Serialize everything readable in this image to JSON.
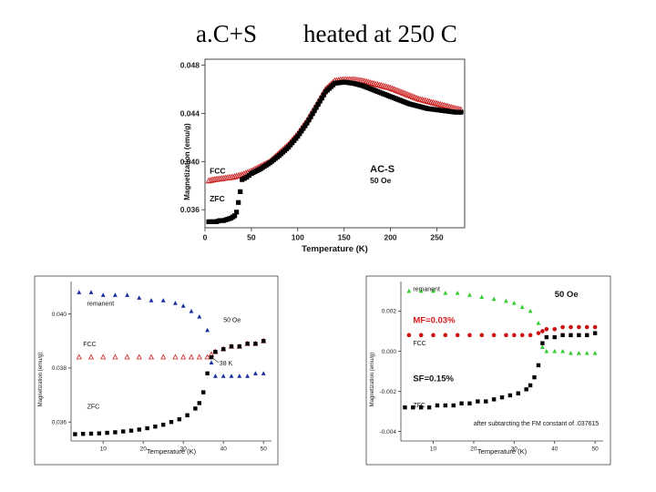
{
  "slide": {
    "title_left": "a.C+S",
    "title_right": "heated at 250 C"
  },
  "chart_data": [
    {
      "type": "scatter",
      "id": "top",
      "title": "",
      "xlabel": "Temperature (K)",
      "ylabel": "Magnetization (emu/g)",
      "xlim": [
        0,
        280
      ],
      "ylim": [
        0.0345,
        0.0485
      ],
      "xticks": [
        0,
        50,
        100,
        150,
        200,
        250
      ],
      "yticks": [
        0.036,
        0.04,
        0.044,
        0.048
      ],
      "ytick_labels": [
        "0.036",
        "0.040",
        "0.044",
        "0.048"
      ],
      "annotations": [
        {
          "text": "AC-S",
          "x": 178,
          "y": 0.0391
        },
        {
          "text": "50 Oe",
          "x": 178,
          "y": 0.0382
        },
        {
          "text": "FCC",
          "x": 5,
          "y": 0.039
        },
        {
          "text": "ZFC",
          "x": 5,
          "y": 0.0367
        }
      ],
      "series": [
        {
          "name": "FCC",
          "marker": "open-triangle",
          "color": "#cc2222",
          "x": [
            4,
            10,
            20,
            30,
            40,
            50,
            60,
            70,
            80,
            90,
            100,
            110,
            120,
            130,
            140,
            150,
            160,
            170,
            180,
            190,
            200,
            210,
            220,
            230,
            240,
            250,
            260,
            270,
            276
          ],
          "y": [
            0.0384,
            0.0385,
            0.0386,
            0.0387,
            0.0389,
            0.0392,
            0.0396,
            0.04,
            0.0407,
            0.0414,
            0.0423,
            0.0434,
            0.0447,
            0.046,
            0.0467,
            0.0468,
            0.0468,
            0.0467,
            0.0465,
            0.0463,
            0.0461,
            0.0458,
            0.0455,
            0.0452,
            0.045,
            0.0448,
            0.0446,
            0.0444,
            0.0443
          ]
        },
        {
          "name": "ZFC",
          "marker": "filled-square",
          "color": "#000000",
          "x": [
            4,
            8,
            12,
            16,
            20,
            24,
            28,
            30,
            32,
            34,
            36,
            38,
            40,
            45,
            50,
            60,
            70,
            80,
            90,
            100,
            110,
            120,
            130,
            140,
            150,
            160,
            170,
            180,
            190,
            200,
            210,
            220,
            230,
            240,
            250,
            260,
            270,
            276
          ],
          "y": [
            0.035,
            0.035,
            0.035,
            0.0351,
            0.0351,
            0.0352,
            0.0353,
            0.0354,
            0.0355,
            0.0358,
            0.0366,
            0.0375,
            0.0385,
            0.0387,
            0.039,
            0.0394,
            0.0399,
            0.0405,
            0.0412,
            0.0421,
            0.0432,
            0.0445,
            0.0458,
            0.0465,
            0.0466,
            0.0465,
            0.0463,
            0.046,
            0.0457,
            0.0454,
            0.0451,
            0.0448,
            0.0446,
            0.0444,
            0.0443,
            0.0442,
            0.0441,
            0.0441
          ]
        }
      ]
    },
    {
      "type": "scatter",
      "id": "bottom_left",
      "title": "",
      "xlabel": "Temperature (K)",
      "ylabel": "Magnetization (emu/g)",
      "xlim": [
        2,
        52
      ],
      "ylim": [
        0.0355,
        0.041
      ],
      "xticks": [
        10,
        20,
        30,
        40,
        50
      ],
      "yticks": [
        0.036,
        0.038,
        0.04
      ],
      "ytick_labels": [
        "0.036",
        "0.038",
        "0.040"
      ],
      "annotations": [
        {
          "text": "remanent",
          "x": 6,
          "y": 0.0403
        },
        {
          "text": "50 Oe",
          "x": 40,
          "y": 0.0397
        },
        {
          "text": "FCC",
          "x": 5,
          "y": 0.0388
        },
        {
          "text": "38 K",
          "x": 39,
          "y": 0.0381
        },
        {
          "text": "ZFC",
          "x": 6,
          "y": 0.0365
        }
      ],
      "series": [
        {
          "name": "remanent",
          "marker": "filled-triangle",
          "color": "#1a2f9e",
          "x": [
            4,
            7,
            10,
            13,
            16,
            19,
            22,
            25,
            28,
            30,
            32,
            34,
            36,
            37,
            38,
            40,
            42,
            44,
            46,
            48,
            50
          ],
          "y": [
            0.0408,
            0.0408,
            0.0407,
            0.0407,
            0.0407,
            0.0406,
            0.0405,
            0.0405,
            0.0404,
            0.0403,
            0.0401,
            0.0399,
            0.0394,
            0.0382,
            0.0377,
            0.0377,
            0.0377,
            0.0377,
            0.0377,
            0.0378,
            0.0378
          ]
        },
        {
          "name": "FCC",
          "marker": "open-triangle",
          "color": "#cc2222",
          "x": [
            4,
            7,
            10,
            13,
            16,
            19,
            22,
            25,
            28,
            30,
            32,
            34,
            36,
            37,
            38,
            40,
            42,
            44,
            46,
            48,
            50
          ],
          "y": [
            0.0384,
            0.0384,
            0.0384,
            0.0384,
            0.0384,
            0.0384,
            0.0384,
            0.0384,
            0.0384,
            0.0384,
            0.0384,
            0.0384,
            0.0384,
            0.0385,
            0.0386,
            0.0387,
            0.0388,
            0.0388,
            0.0389,
            0.0389,
            0.039
          ]
        },
        {
          "name": "ZFC",
          "marker": "filled-square",
          "color": "#000000",
          "x": [
            3,
            5,
            7,
            9,
            11,
            13,
            15,
            17,
            19,
            21,
            23,
            25,
            27,
            29,
            31,
            33,
            34,
            35,
            36,
            37,
            38,
            40,
            42,
            44,
            46,
            48,
            50
          ],
          "y": [
            0.03555,
            0.03556,
            0.03557,
            0.03558,
            0.0356,
            0.03562,
            0.03565,
            0.03568,
            0.03572,
            0.03577,
            0.03583,
            0.0359,
            0.036,
            0.0361,
            0.03625,
            0.0365,
            0.0367,
            0.0371,
            0.0378,
            0.0384,
            0.0386,
            0.0387,
            0.0388,
            0.0388,
            0.0389,
            0.0389,
            0.039
          ]
        }
      ]
    },
    {
      "type": "scatter",
      "id": "bottom_right",
      "title": "",
      "xlabel": "Temperature (K)",
      "ylabel": "Magnetization (emu/g)",
      "xlim": [
        2,
        52
      ],
      "ylim": [
        -0.0042,
        0.0032
      ],
      "xticks": [
        10,
        20,
        30,
        40,
        50
      ],
      "yticks": [
        -0.004,
        -0.002,
        0.0,
        0.002
      ],
      "ytick_labels": [
        "-0.004",
        "-0.002",
        "0.000",
        "0.002"
      ],
      "annotations": [
        {
          "text": "remanent",
          "x": 5,
          "y": 0.003
        },
        {
          "text": "50 Oe",
          "x": 40,
          "y": 0.0027
        },
        {
          "text": "MF=0.03%",
          "x": 5,
          "y": 0.0014,
          "color": "#d11a1a"
        },
        {
          "text": "FCC",
          "x": 5,
          "y": 0.0003
        },
        {
          "text": "SF=0.15%",
          "x": 5,
          "y": -0.0015
        },
        {
          "text": "ZFC",
          "x": 5,
          "y": -0.0028
        },
        {
          "text": "after subtarcting  the FM constant of .037615",
          "x": 20,
          "y": -0.0037
        }
      ],
      "series": [
        {
          "name": "remanent",
          "marker": "filled-triangle",
          "color": "#33cc33",
          "x": [
            4,
            7,
            10,
            13,
            16,
            19,
            22,
            25,
            28,
            30,
            32,
            34,
            36,
            37,
            38,
            40,
            42,
            44,
            46,
            48,
            50
          ],
          "y": [
            0.003,
            0.003,
            0.003,
            0.0029,
            0.0029,
            0.0028,
            0.0027,
            0.0026,
            0.0025,
            0.0024,
            0.0022,
            0.002,
            0.0014,
            0.0002,
            0.0,
            0.0,
            0.0,
            -0.0001,
            -0.0001,
            -0.0001,
            -0.0001
          ]
        },
        {
          "name": "FCC",
          "marker": "filled-circle",
          "color": "#cc1111",
          "x": [
            4,
            7,
            10,
            13,
            16,
            19,
            22,
            25,
            28,
            30,
            32,
            34,
            36,
            37,
            38,
            40,
            42,
            44,
            46,
            48,
            50
          ],
          "y": [
            0.0008,
            0.0008,
            0.0008,
            0.0008,
            0.0008,
            0.0008,
            0.0008,
            0.0008,
            0.0008,
            0.0008,
            0.0008,
            0.0008,
            0.0009,
            0.001,
            0.0011,
            0.0011,
            0.0012,
            0.0012,
            0.0012,
            0.0012,
            0.0012
          ]
        },
        {
          "name": "ZFC",
          "marker": "filled-square",
          "color": "#000000",
          "x": [
            3,
            5,
            7,
            9,
            11,
            13,
            15,
            17,
            19,
            21,
            23,
            25,
            27,
            29,
            31,
            33,
            34,
            35,
            36,
            37,
            38,
            40,
            42,
            44,
            46,
            48,
            50
          ],
          "y": [
            -0.0028,
            -0.0028,
            -0.0028,
            -0.0028,
            -0.0027,
            -0.0027,
            -0.0027,
            -0.0026,
            -0.0026,
            -0.0025,
            -0.0025,
            -0.0024,
            -0.0023,
            -0.0022,
            -0.0021,
            -0.0019,
            -0.0017,
            -0.0013,
            -0.0007,
            0.0004,
            0.0007,
            0.0007,
            0.0008,
            0.0008,
            0.0008,
            0.0008,
            0.0009
          ]
        }
      ]
    }
  ]
}
